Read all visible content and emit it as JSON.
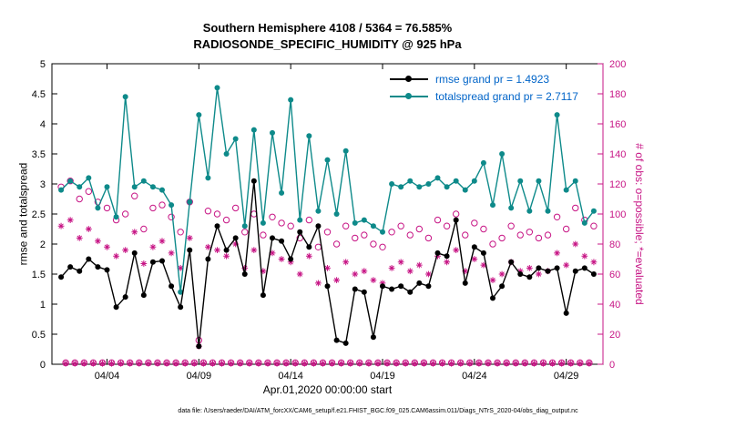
{
  "title": {
    "line1": "Southern Hemisphere 4108 / 5364 = 76.585%",
    "line2": "RADIOSONDE_SPECIFIC_HUMIDITY @ 925 hPa"
  },
  "xlabel": "Apr.01,2020 00:00:00 start",
  "footer": "data file: /Users/raeder/DAI/ATM_forcXX/CAM6_setup/f.e21.FHIST_BGC.f09_025.CAM6assim.011/Diags_NTrS_2020-04/obs_diag_output.nc",
  "colors": {
    "rmse": "#000000",
    "totalspread": "#0E8A8A",
    "counts": "#C71585",
    "legend_text": "#0064C8",
    "axis": "#000000",
    "background": "#FFFFFF"
  },
  "legend": [
    {
      "series": "rmse",
      "label": "rmse grand pr = 1.4923"
    },
    {
      "series": "totalspread",
      "label": "totalspread grand pr = 2.7117"
    }
  ],
  "chart_data": {
    "type": "line",
    "title": "Southern Hemisphere 4108 / 5364 = 76.585% | RADIOSONDE_SPECIFIC_HUMIDITY @ 925 hPa",
    "x_unit": "day of April 2020",
    "grid": false,
    "legend_position": "top-right-inside",
    "x": [
      1.5,
      2,
      2.5,
      3,
      3.5,
      4,
      4.5,
      5,
      5.5,
      6,
      6.5,
      7,
      7.5,
      8,
      8.5,
      9,
      9.5,
      10,
      10.5,
      11,
      11.5,
      12,
      12.5,
      13,
      13.5,
      14,
      14.5,
      15,
      15.5,
      16,
      16.5,
      17,
      17.5,
      18,
      18.5,
      19,
      19.5,
      20,
      20.5,
      21,
      21.5,
      22,
      22.5,
      23,
      23.5,
      24,
      24.5,
      25,
      25.5,
      26,
      26.5,
      27,
      27.5,
      28,
      28.5,
      29,
      29.5,
      30,
      30.5
    ],
    "series": [
      {
        "name": "rmse",
        "axis": "left",
        "line": true,
        "marker": "filled-circle",
        "color": "#000000",
        "grand_mean": 1.4923,
        "values": [
          1.45,
          1.62,
          1.55,
          1.75,
          1.62,
          1.57,
          0.95,
          1.12,
          1.85,
          1.15,
          1.7,
          1.72,
          1.3,
          0.95,
          1.9,
          0.3,
          1.75,
          2.3,
          1.9,
          2.1,
          1.5,
          3.05,
          1.15,
          2.1,
          2.05,
          1.75,
          2.2,
          1.95,
          2.3,
          1.3,
          0.4,
          0.35,
          1.25,
          1.2,
          0.45,
          1.3,
          1.25,
          1.3,
          1.2,
          1.35,
          1.3,
          1.85,
          1.8,
          2.4,
          1.35,
          1.95,
          1.85,
          1.1,
          1.3,
          1.7,
          1.5,
          1.45,
          1.6,
          1.55,
          1.6,
          0.85,
          1.55,
          1.6,
          1.5
        ]
      },
      {
        "name": "totalspread",
        "axis": "left",
        "line": true,
        "marker": "filled-circle",
        "color": "#0E8A8A",
        "grand_mean": 2.7117,
        "values": [
          2.9,
          3.05,
          2.95,
          3.1,
          2.6,
          2.95,
          2.45,
          4.45,
          2.95,
          3.05,
          2.95,
          2.9,
          2.65,
          1.2,
          2.7,
          4.15,
          3.1,
          4.6,
          3.5,
          3.75,
          2.3,
          3.9,
          2.35,
          3.85,
          2.85,
          4.4,
          2.4,
          3.8,
          2.55,
          3.4,
          2.5,
          3.55,
          2.35,
          2.4,
          2.3,
          2.2,
          3.0,
          2.95,
          3.05,
          2.95,
          3.0,
          3.1,
          2.95,
          3.05,
          2.9,
          3.05,
          3.35,
          2.65,
          3.5,
          2.6,
          3.05,
          2.55,
          3.05,
          2.55,
          4.15,
          2.9,
          3.05,
          2.35,
          2.55
        ]
      },
      {
        "name": "possible",
        "axis": "right",
        "line": false,
        "marker": "open-circle",
        "color": "#C71585",
        "values": [
          118,
          122,
          110,
          115,
          108,
          104,
          96,
          100,
          112,
          90,
          104,
          106,
          98,
          88,
          108,
          16,
          102,
          100,
          96,
          104,
          88,
          100,
          86,
          98,
          94,
          92,
          84,
          96,
          78,
          88,
          80,
          92,
          84,
          86,
          80,
          78,
          88,
          92,
          86,
          90,
          84,
          96,
          92,
          100,
          86,
          94,
          90,
          80,
          84,
          92,
          86,
          88,
          84,
          86,
          98,
          90,
          104,
          96,
          92
        ]
      },
      {
        "name": "evaluated",
        "axis": "right",
        "line": false,
        "marker": "asterisk",
        "color": "#C71585",
        "values": [
          92,
          96,
          84,
          90,
          82,
          78,
          72,
          76,
          88,
          67,
          78,
          82,
          74,
          64,
          84,
          12,
          78,
          76,
          72,
          80,
          64,
          76,
          62,
          74,
          70,
          68,
          60,
          72,
          54,
          64,
          56,
          68,
          60,
          62,
          56,
          54,
          64,
          68,
          62,
          66,
          60,
          72,
          68,
          76,
          62,
          70,
          66,
          56,
          60,
          68,
          62,
          64,
          60,
          62,
          74,
          66,
          80,
          72,
          68
        ]
      }
    ],
    "off_synoptic_counts": {
      "x_start": 1.75,
      "x_step": 0.5,
      "n": 58,
      "possible": 1,
      "evaluated": 0.5
    },
    "axes": {
      "left": {
        "label": "rmse and totalspread",
        "min": 0,
        "max": 5,
        "ticks": [
          "0",
          "0.5",
          "1",
          "1.5",
          "2",
          "2.5",
          "3",
          "3.5",
          "4",
          "4.5",
          "5"
        ]
      },
      "right": {
        "label": "# of obs: o=possible; *=evaluated",
        "min": 0,
        "max": 200,
        "ticks": [
          "0",
          "20",
          "40",
          "60",
          "80",
          "100",
          "120",
          "140",
          "160",
          "180",
          "200"
        ]
      },
      "x": {
        "min": 1,
        "max": 31,
        "ticks": [
          {
            "day": 4,
            "label": "04/04"
          },
          {
            "day": 9,
            "label": "04/09"
          },
          {
            "day": 14,
            "label": "04/14"
          },
          {
            "day": 19,
            "label": "04/19"
          },
          {
            "day": 24,
            "label": "04/24"
          },
          {
            "day": 29,
            "label": "04/29"
          }
        ]
      }
    }
  }
}
